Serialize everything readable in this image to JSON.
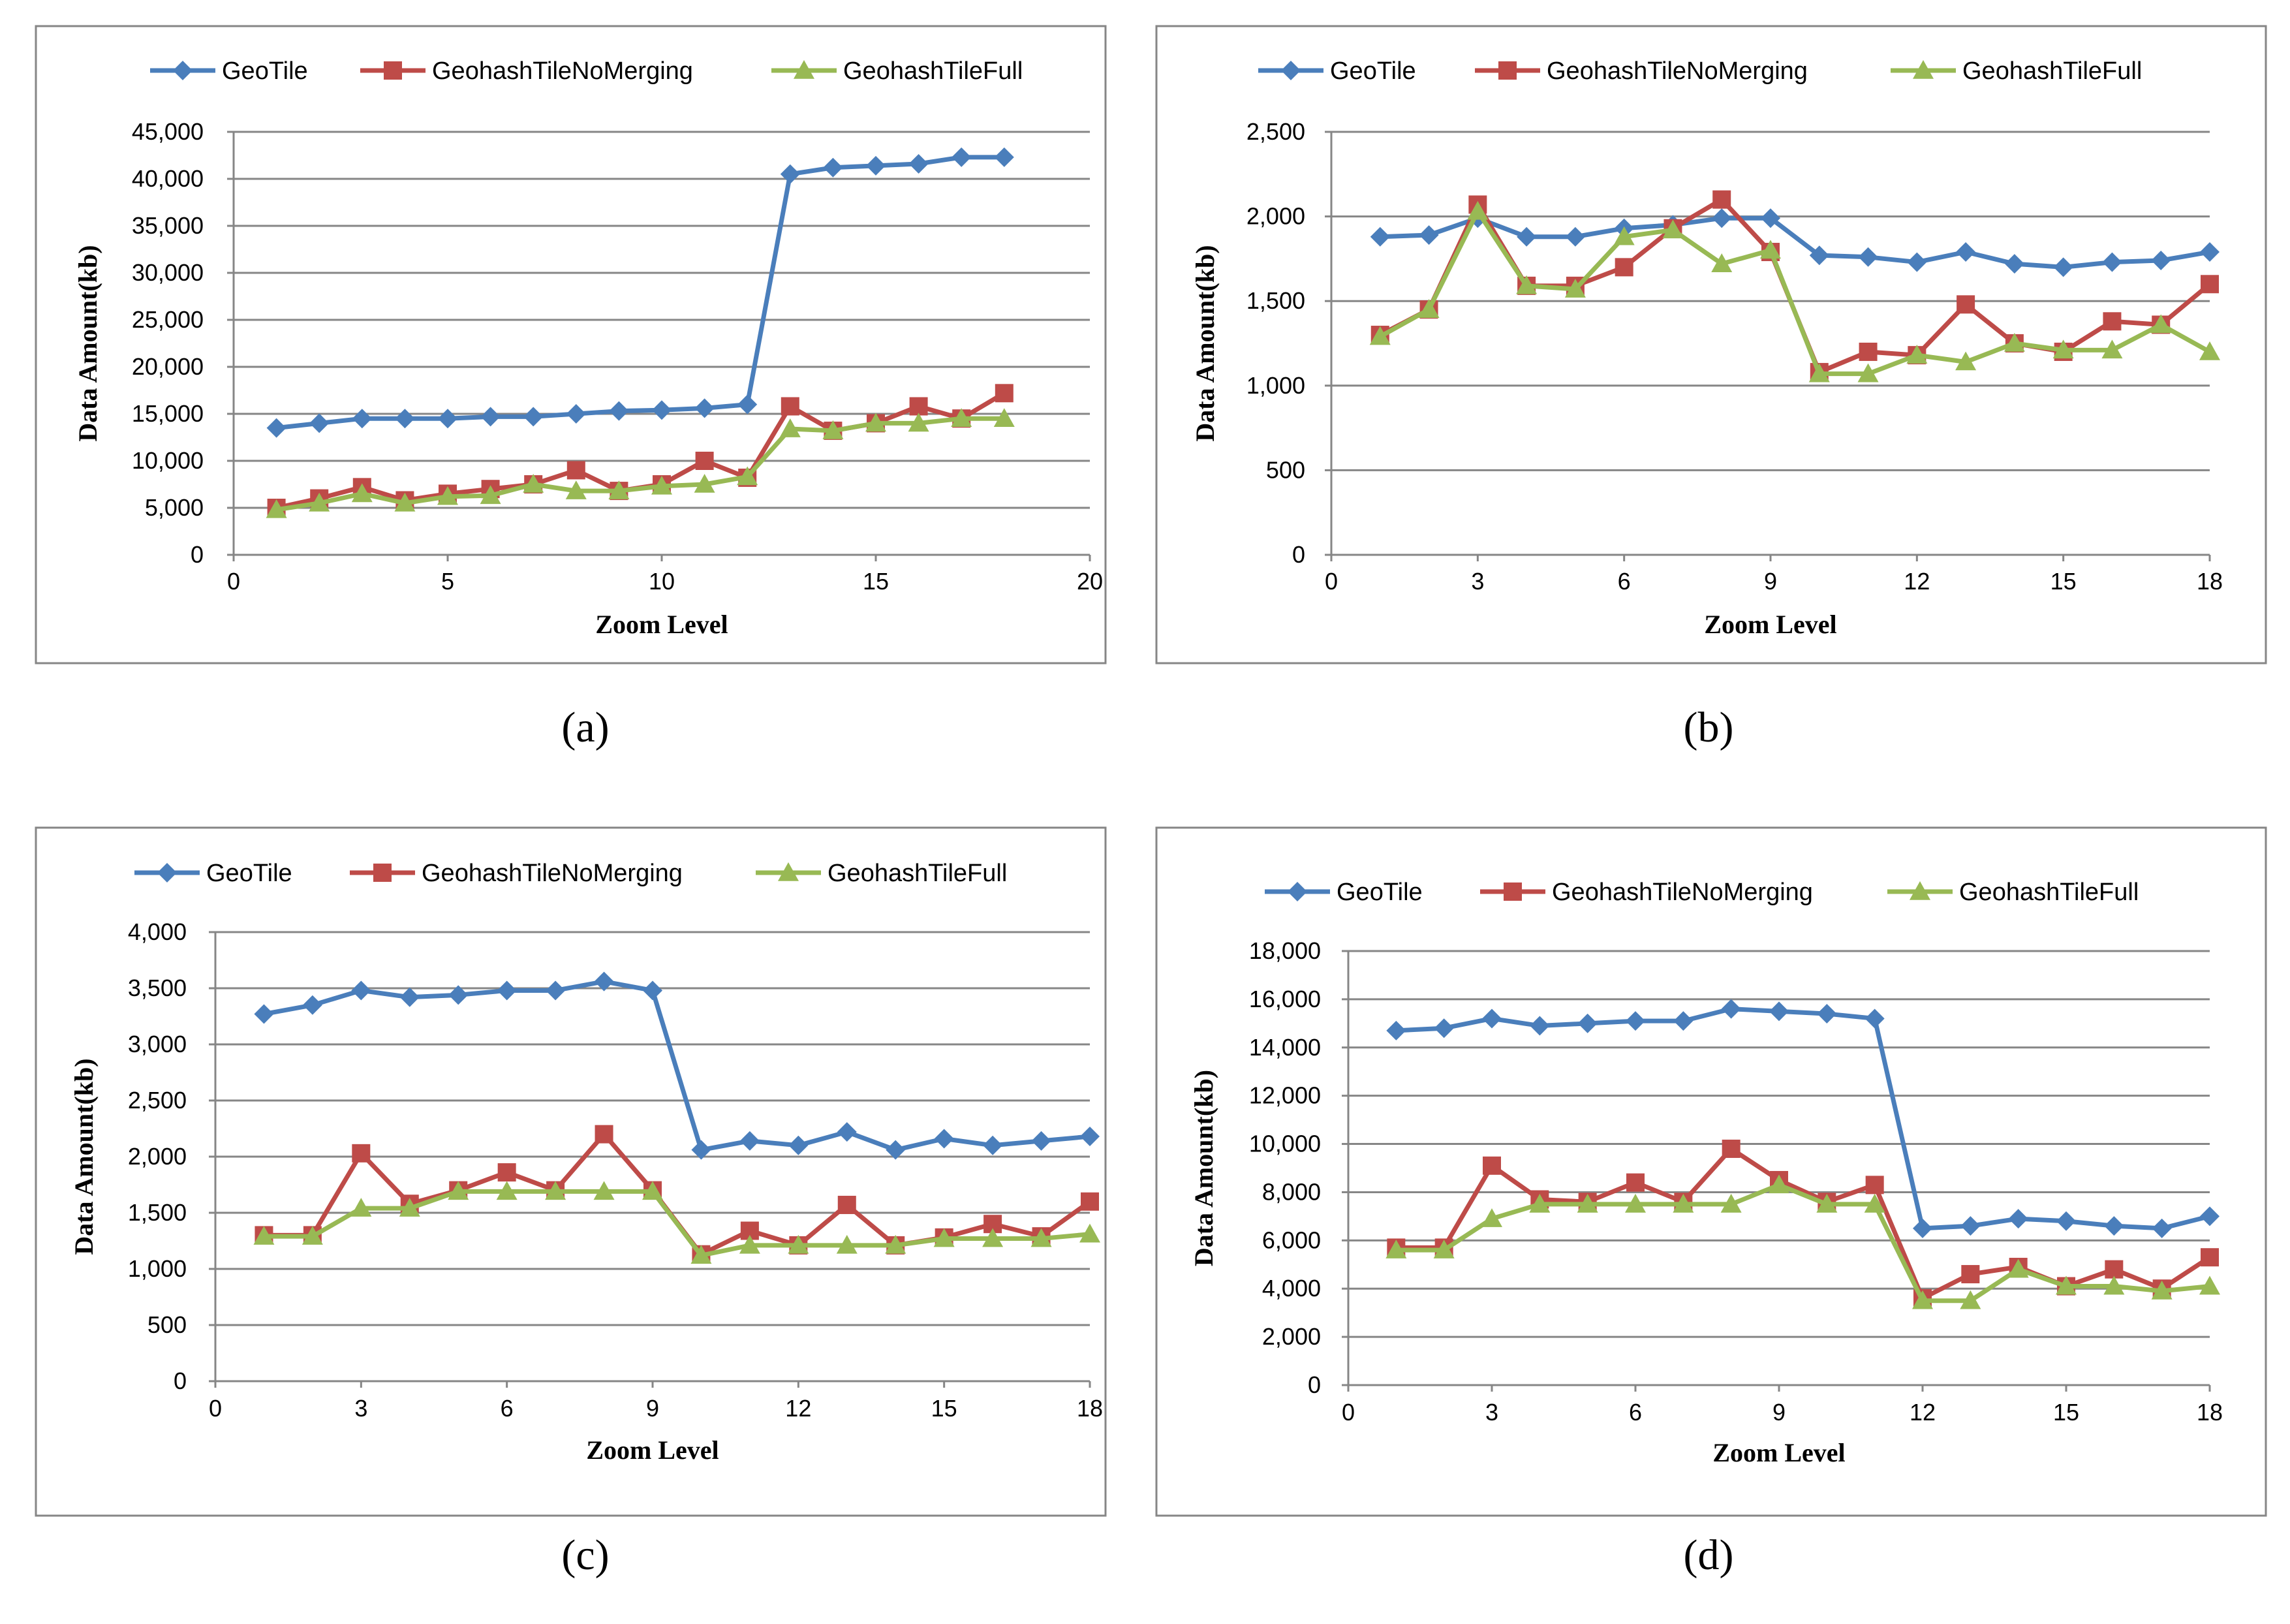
{
  "colors": {
    "series_0": "#4a7ebb",
    "series_1": "#be4b48",
    "series_2": "#98b954",
    "grid": "#868686",
    "frame": "#868686"
  },
  "chart_data": [
    {
      "type": "line",
      "caption": "(a)",
      "xlabel": "Zoom Level",
      "ylabel": "Data Amount(kb)",
      "xlim": [
        0,
        20
      ],
      "xticks": [
        0,
        5,
        10,
        15,
        20
      ],
      "xtick_labels": [
        "0",
        "5",
        "10",
        "15",
        "20"
      ],
      "ylim": [
        0,
        45000
      ],
      "yticks": [
        0,
        5000,
        10000,
        15000,
        20000,
        25000,
        30000,
        35000,
        40000,
        45000
      ],
      "ytick_labels": [
        "0",
        "5,000",
        "10,000",
        "15,000",
        "20,000",
        "25,000",
        "30,000",
        "35,000",
        "40,000",
        "45,000"
      ],
      "grid": true,
      "legend_position": "top",
      "x": [
        1,
        2,
        3,
        4,
        5,
        6,
        7,
        8,
        9,
        10,
        11,
        12,
        13,
        14,
        15,
        16,
        17,
        18
      ],
      "series": [
        {
          "name": "GeoTile",
          "marker": "diamond",
          "values": [
            13500,
            14000,
            14500,
            14500,
            14500,
            14700,
            14700,
            15000,
            15300,
            15400,
            15600,
            16000,
            40500,
            41200,
            41400,
            41600,
            42300,
            42300
          ]
        },
        {
          "name": "GeohashTileNoMerging",
          "marker": "square",
          "values": [
            5000,
            6000,
            7200,
            5800,
            6500,
            7000,
            7500,
            9000,
            6800,
            7500,
            10000,
            8200,
            15800,
            13200,
            14000,
            15800,
            14500,
            17200
          ]
        },
        {
          "name": "GeohashTileFull",
          "marker": "triangle",
          "values": [
            4800,
            5500,
            6500,
            5500,
            6200,
            6300,
            7500,
            6800,
            6800,
            7300,
            7500,
            8300,
            13400,
            13200,
            14000,
            14000,
            14500,
            14500
          ]
        }
      ]
    },
    {
      "type": "line",
      "caption": "(b)",
      "xlabel": "Zoom  Level",
      "ylabel": "Data Amount(kb)",
      "xlim": [
        0,
        18
      ],
      "xticks": [
        0,
        3,
        6,
        9,
        12,
        15,
        18
      ],
      "xtick_labels": [
        "0",
        "3",
        "6",
        "9",
        "12",
        "15",
        "18"
      ],
      "ylim": [
        0,
        2500
      ],
      "yticks": [
        0,
        500,
        1000,
        1500,
        2000,
        2500
      ],
      "ytick_labels": [
        "0",
        "500",
        "1,000",
        "1,500",
        "2,000",
        "2,500"
      ],
      "grid": true,
      "legend_position": "top",
      "x": [
        1,
        2,
        3,
        4,
        5,
        6,
        7,
        8,
        9,
        10,
        11,
        12,
        13,
        14,
        15,
        16,
        17,
        18
      ],
      "series": [
        {
          "name": "GeoTile",
          "marker": "diamond",
          "values": [
            1880,
            1890,
            1990,
            1880,
            1880,
            1930,
            1950,
            1990,
            1990,
            1770,
            1760,
            1730,
            1790,
            1720,
            1700,
            1730,
            1740,
            1790
          ]
        },
        {
          "name": "GeohashTileNoMerging",
          "marker": "square",
          "values": [
            1300,
            1450,
            2070,
            1590,
            1590,
            1700,
            1930,
            2100,
            1790,
            1080,
            1200,
            1180,
            1480,
            1250,
            1200,
            1380,
            1360,
            1600
          ]
        },
        {
          "name": "GeohashTileFull",
          "marker": "triangle",
          "values": [
            1290,
            1450,
            2030,
            1590,
            1570,
            1880,
            1920,
            1720,
            1800,
            1070,
            1070,
            1180,
            1140,
            1250,
            1210,
            1210,
            1360,
            1200
          ]
        }
      ]
    },
    {
      "type": "line",
      "caption": "(c)",
      "xlabel": "Zoom  Level",
      "ylabel": "Data Amount(kb)",
      "xlim": [
        0,
        18
      ],
      "xticks": [
        0,
        3,
        6,
        9,
        12,
        15,
        18
      ],
      "xtick_labels": [
        "0",
        "3",
        "6",
        "9",
        "12",
        "15",
        "18"
      ],
      "ylim": [
        0,
        4000
      ],
      "yticks": [
        0,
        500,
        1000,
        1500,
        2000,
        2500,
        3000,
        3500,
        4000
      ],
      "ytick_labels": [
        "0",
        "500",
        "1,000",
        "1,500",
        "2,000",
        "2,500",
        "3,000",
        "3,500",
        "4,000"
      ],
      "grid": true,
      "legend_position": "top",
      "x": [
        1,
        2,
        3,
        4,
        5,
        6,
        7,
        8,
        9,
        10,
        11,
        12,
        13,
        14,
        15,
        16,
        17,
        18
      ],
      "series": [
        {
          "name": "GeoTile",
          "marker": "diamond",
          "values": [
            3270,
            3350,
            3480,
            3420,
            3440,
            3480,
            3480,
            3560,
            3480,
            2060,
            2140,
            2100,
            2220,
            2060,
            2160,
            2100,
            2140,
            2180
          ]
        },
        {
          "name": "GeohashTileNoMerging",
          "marker": "square",
          "values": [
            1300,
            1300,
            2030,
            1580,
            1700,
            1860,
            1700,
            2200,
            1700,
            1130,
            1340,
            1210,
            1570,
            1210,
            1280,
            1400,
            1290,
            1600
          ]
        },
        {
          "name": "GeohashTileFull",
          "marker": "triangle",
          "values": [
            1290,
            1290,
            1540,
            1540,
            1690,
            1690,
            1690,
            1690,
            1690,
            1120,
            1210,
            1210,
            1210,
            1210,
            1270,
            1270,
            1270,
            1310
          ]
        }
      ]
    },
    {
      "type": "line",
      "caption": "(d)",
      "xlabel": "Zoom  Level",
      "ylabel": "Data Amount(kb)",
      "xlim": [
        0,
        18
      ],
      "xticks": [
        0,
        3,
        6,
        9,
        12,
        15,
        18
      ],
      "xtick_labels": [
        "0",
        "3",
        "6",
        "9",
        "12",
        "15",
        "18"
      ],
      "ylim": [
        0,
        18000
      ],
      "yticks": [
        0,
        2000,
        4000,
        6000,
        8000,
        10000,
        12000,
        14000,
        16000,
        18000
      ],
      "ytick_labels": [
        "0",
        "2,000",
        "4,000",
        "6,000",
        "8,000",
        "10,000",
        "12,000",
        "14,000",
        "16,000",
        "18,000"
      ],
      "grid": true,
      "legend_position": "top",
      "x": [
        1,
        2,
        3,
        4,
        5,
        6,
        7,
        8,
        9,
        10,
        11,
        12,
        13,
        14,
        15,
        16,
        17,
        18
      ],
      "series": [
        {
          "name": "GeoTile",
          "marker": "diamond",
          "values": [
            14700,
            14800,
            15200,
            14900,
            15000,
            15100,
            15100,
            15600,
            15500,
            15400,
            15200,
            6500,
            6600,
            6900,
            6800,
            6600,
            6500,
            7000
          ]
        },
        {
          "name": "GeohashTileNoMerging",
          "marker": "square",
          "values": [
            5700,
            5700,
            9100,
            7700,
            7600,
            8400,
            7600,
            9800,
            8500,
            7600,
            8300,
            3600,
            4600,
            4900,
            4100,
            4800,
            4000,
            5300
          ]
        },
        {
          "name": "GeohashTileFull",
          "marker": "triangle",
          "values": [
            5600,
            5600,
            6900,
            7500,
            7500,
            7500,
            7500,
            7500,
            8300,
            7500,
            7500,
            3500,
            3500,
            4800,
            4100,
            4100,
            3900,
            4100
          ]
        }
      ]
    }
  ]
}
